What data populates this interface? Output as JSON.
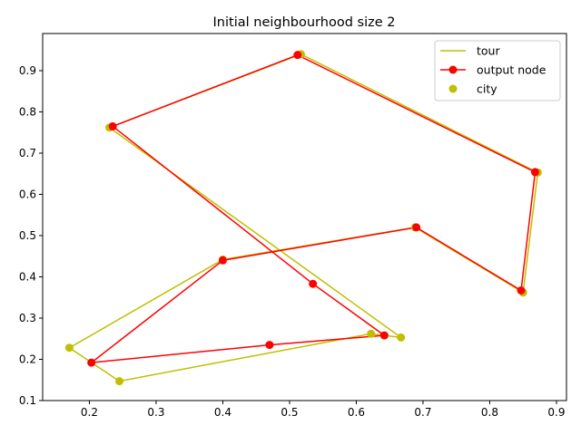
{
  "chart_data": {
    "type": "line",
    "title": "Initial neighbourhood size 2",
    "xlabel": "",
    "ylabel": "",
    "xlim": [
      0.13,
      0.915
    ],
    "ylim": [
      0.1,
      0.99
    ],
    "x_ticks": [
      0.2,
      0.3,
      0.4,
      0.5,
      0.6,
      0.7,
      0.8,
      0.9
    ],
    "y_ticks": [
      0.1,
      0.2,
      0.3,
      0.4,
      0.5,
      0.6,
      0.7,
      0.8,
      0.9
    ],
    "grid": false,
    "legend_position": "top-right",
    "series": [
      {
        "name": "tour",
        "style": "line",
        "color": "#bfbf00",
        "points": [
          [
            0.23,
            0.762
          ],
          [
            0.517,
            0.94
          ],
          [
            0.872,
            0.653
          ],
          [
            0.85,
            0.362
          ],
          [
            0.688,
            0.52
          ],
          [
            0.4,
            0.442
          ],
          [
            0.17,
            0.228
          ],
          [
            0.245,
            0.147
          ],
          [
            0.622,
            0.262
          ],
          [
            0.667,
            0.253
          ],
          [
            0.23,
            0.762
          ]
        ]
      },
      {
        "name": "output node",
        "style": "line-marker",
        "color": "#ff0000",
        "points": [
          [
            0.235,
            0.765
          ],
          [
            0.512,
            0.938
          ],
          [
            0.868,
            0.654
          ],
          [
            0.847,
            0.367
          ],
          [
            0.69,
            0.52
          ],
          [
            0.4,
            0.44
          ],
          [
            0.203,
            0.192
          ],
          [
            0.47,
            0.235
          ],
          [
            0.642,
            0.258
          ],
          [
            0.535,
            0.383
          ],
          [
            0.235,
            0.765
          ]
        ]
      },
      {
        "name": "city",
        "style": "scatter",
        "color": "#bfbf00",
        "points": [
          [
            0.23,
            0.762
          ],
          [
            0.517,
            0.94
          ],
          [
            0.872,
            0.653
          ],
          [
            0.85,
            0.362
          ],
          [
            0.688,
            0.52
          ],
          [
            0.4,
            0.442
          ],
          [
            0.17,
            0.228
          ],
          [
            0.245,
            0.147
          ],
          [
            0.622,
            0.262
          ],
          [
            0.667,
            0.253
          ]
        ]
      }
    ]
  }
}
